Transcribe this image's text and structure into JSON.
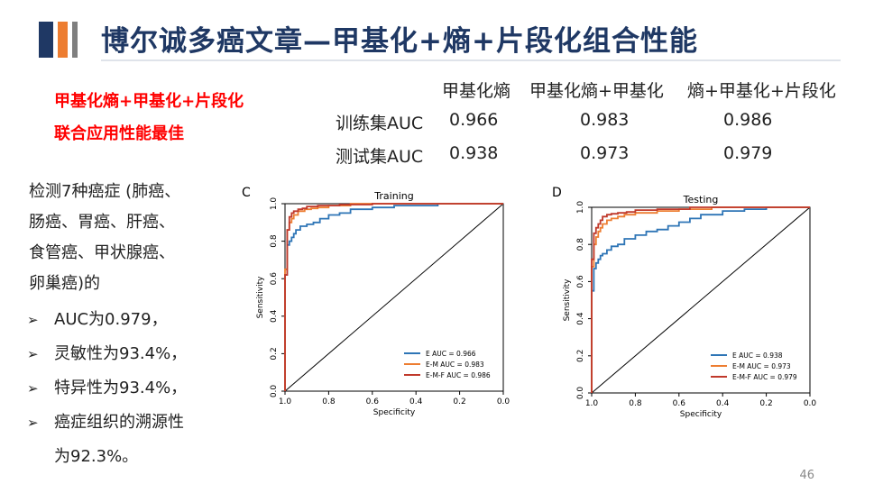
{
  "title": "博尔诚多癌文章—甲基化+熵+片段化组合性能",
  "highlight": {
    "line1": "甲基化熵+甲基化+片段化",
    "line2": "联合应用性能最佳"
  },
  "table": {
    "headers": [
      "甲基化熵",
      "甲基化熵+甲基化",
      "熵+甲基化+片段化"
    ],
    "rows": [
      {
        "label": "训练集AUC",
        "values": [
          "0.966",
          "0.983",
          "0.986"
        ]
      },
      {
        "label": "测试集AUC",
        "values": [
          "0.938",
          "0.973",
          "0.979"
        ]
      }
    ]
  },
  "description": {
    "lines": [
      "检测7种癌症 (肺癌、",
      "肠癌、胃癌、肝癌、",
      "食管癌、甲状腺癌、",
      "卵巢癌)的"
    ]
  },
  "bullets": [
    "AUC为0.979，",
    "灵敏性为93.4%，",
    "特异性为93.4%，",
    "癌症组织的溯源性",
    "为92.3%。"
  ],
  "page_number": "46",
  "colors": {
    "title": "#1f3864",
    "highlight": "#ff0000",
    "E": "#2e75b6",
    "EM": "#ed7d31",
    "EMF": "#c0392b"
  },
  "chart_data": [
    {
      "type": "line",
      "panel": "C",
      "title": "Training",
      "xlabel": "Specificity",
      "ylabel": "Sensitivity",
      "xlim": [
        1.0,
        0.0
      ],
      "ylim": [
        0.0,
        1.0
      ],
      "xticks": [
        "1.0",
        "0.8",
        "0.6",
        "0.4",
        "0.2",
        "0.0"
      ],
      "yticks": [
        "0.0",
        "0.2",
        "0.4",
        "0.6",
        "0.8",
        "1.0"
      ],
      "legend_position": "bottom-right",
      "series": [
        {
          "name": "E AUC = 0.966",
          "color": "#2e75b6",
          "x": [
            1.0,
            0.99,
            0.99,
            0.98,
            0.97,
            0.96,
            0.95,
            0.93,
            0.9,
            0.87,
            0.84,
            0.8,
            0.75,
            0.7,
            0.6,
            0.5,
            0.4,
            0.3,
            0.2,
            0.1,
            0.0
          ],
          "y": [
            0.0,
            0.62,
            0.72,
            0.78,
            0.8,
            0.82,
            0.84,
            0.86,
            0.88,
            0.89,
            0.9,
            0.92,
            0.94,
            0.95,
            0.97,
            0.98,
            0.99,
            0.99,
            1.0,
            1.0,
            1.0
          ]
        },
        {
          "name": "E-M AUC = 0.983",
          "color": "#ed7d31",
          "x": [
            1.0,
            0.99,
            0.99,
            0.98,
            0.97,
            0.96,
            0.94,
            0.91,
            0.88,
            0.85,
            0.8,
            0.7,
            0.5,
            0.3,
            0.0
          ],
          "y": [
            0.0,
            0.65,
            0.8,
            0.86,
            0.9,
            0.92,
            0.94,
            0.96,
            0.97,
            0.975,
            0.98,
            0.99,
            1.0,
            1.0,
            1.0
          ]
        },
        {
          "name": "E-M-F AUC = 0.986",
          "color": "#c0392b",
          "x": [
            1.0,
            0.99,
            0.99,
            0.98,
            0.98,
            0.97,
            0.96,
            0.94,
            0.92,
            0.9,
            0.85,
            0.75,
            0.6,
            0.4,
            0.2,
            0.0
          ],
          "y": [
            0.0,
            0.62,
            0.78,
            0.86,
            0.9,
            0.93,
            0.95,
            0.96,
            0.97,
            0.975,
            0.985,
            0.99,
            0.995,
            1.0,
            1.0,
            1.0
          ]
        }
      ]
    },
    {
      "type": "line",
      "panel": "D",
      "title": "Testing",
      "xlabel": "Specificity",
      "ylabel": "Sensitivity",
      "xlim": [
        1.0,
        0.0
      ],
      "ylim": [
        0.0,
        1.0
      ],
      "xticks": [
        "1.0",
        "0.8",
        "0.6",
        "0.4",
        "0.2",
        "0.0"
      ],
      "yticks": [
        "0.0",
        "0.2",
        "0.4",
        "0.6",
        "0.8",
        "1.0"
      ],
      "legend_position": "bottom-right",
      "series": [
        {
          "name": "E AUC = 0.938",
          "color": "#2e75b6",
          "x": [
            1.0,
            0.99,
            0.99,
            0.98,
            0.97,
            0.96,
            0.95,
            0.93,
            0.91,
            0.88,
            0.85,
            0.8,
            0.75,
            0.7,
            0.65,
            0.6,
            0.55,
            0.5,
            0.4,
            0.3,
            0.2,
            0.1,
            0.0
          ],
          "y": [
            0.0,
            0.55,
            0.63,
            0.67,
            0.7,
            0.72,
            0.74,
            0.75,
            0.77,
            0.79,
            0.8,
            0.83,
            0.85,
            0.87,
            0.88,
            0.9,
            0.92,
            0.94,
            0.96,
            0.98,
            0.99,
            1.0,
            1.0
          ]
        },
        {
          "name": "E-M AUC = 0.973",
          "color": "#ed7d31",
          "x": [
            1.0,
            0.99,
            0.99,
            0.98,
            0.97,
            0.96,
            0.95,
            0.93,
            0.91,
            0.88,
            0.85,
            0.8,
            0.7,
            0.6,
            0.45,
            0.3,
            0.15,
            0.0
          ],
          "y": [
            0.0,
            0.68,
            0.75,
            0.8,
            0.84,
            0.87,
            0.89,
            0.91,
            0.93,
            0.94,
            0.95,
            0.96,
            0.97,
            0.98,
            0.99,
            1.0,
            1.0,
            1.0
          ]
        },
        {
          "name": "E-M-F AUC = 0.979",
          "color": "#c0392b",
          "x": [
            1.0,
            0.99,
            0.99,
            0.98,
            0.97,
            0.96,
            0.95,
            0.93,
            0.91,
            0.88,
            0.84,
            0.8,
            0.7,
            0.55,
            0.4,
            0.25,
            0.1,
            0.0
          ],
          "y": [
            0.0,
            0.72,
            0.8,
            0.86,
            0.89,
            0.91,
            0.93,
            0.95,
            0.96,
            0.965,
            0.97,
            0.975,
            0.985,
            0.99,
            1.0,
            1.0,
            1.0,
            1.0
          ]
        }
      ]
    }
  ]
}
